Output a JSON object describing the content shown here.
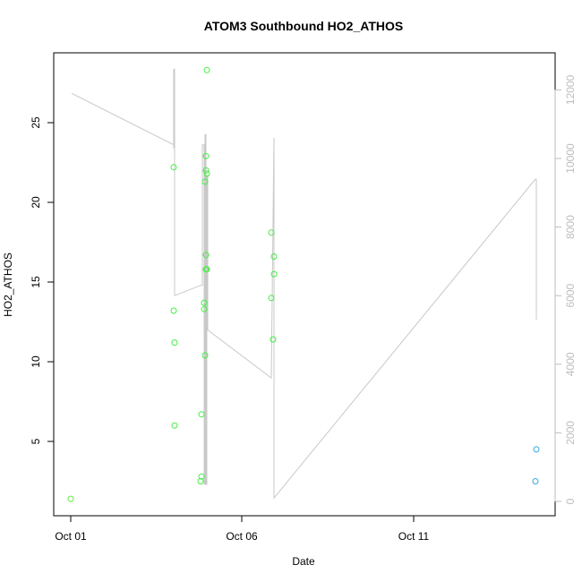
{
  "chart_data": {
    "type": "scatter",
    "title": "ATOM3 Southbound HO2_ATHOS",
    "xlabel": "Date",
    "ylabel": "HO2_ATHOS",
    "x_ticks": [
      "Oct 01",
      "Oct 06",
      "Oct 11"
    ],
    "y_ticks": [
      "5",
      "10",
      "15",
      "20",
      "25"
    ],
    "y2_ticks": [
      "0",
      "2000",
      "4000",
      "6000",
      "8000",
      "10000",
      "12000"
    ],
    "xlim_days": [
      0,
      14.0
    ],
    "ylim": [
      0.9,
      28.8
    ],
    "y2lim": [
      -300,
      12700
    ],
    "colors": {
      "series_green": "#66ee44",
      "series_green2": "#44ee44",
      "series_blue": "#33aadd",
      "altitude": "#c8c8c8",
      "right_axis": "#bdbdbd"
    },
    "series": [
      {
        "color": "#66ee44",
        "points": [
          [
            0.02,
            1.4
          ]
        ]
      },
      {
        "color": "#44ee44",
        "points": [
          [
            3.8,
            22.2
          ],
          [
            3.8,
            13.2
          ],
          [
            3.85,
            11.2
          ],
          [
            3.85,
            6.0
          ],
          [
            3.85,
            28.3
          ],
          [
            3.85,
            22.9
          ],
          [
            3.85,
            22.0
          ],
          [
            3.85,
            21.8
          ],
          [
            3.85,
            21.3
          ],
          [
            3.85,
            16.7
          ],
          [
            3.85,
            15.8
          ],
          [
            3.85,
            15.8
          ],
          [
            3.85,
            13.7
          ],
          [
            3.85,
            13.3
          ],
          [
            3.85,
            10.4
          ],
          [
            3.85,
            6.7
          ],
          [
            3.85,
            2.8
          ],
          [
            3.85,
            2.5
          ],
          [
            3.85,
            18.1
          ],
          [
            3.85,
            16.6
          ],
          [
            3.85,
            15.5
          ],
          [
            3.85,
            14.0
          ],
          [
            3.85,
            11.4
          ]
        ]
      },
      {
        "color": "#33aadd",
        "points": [
          [
            13.5,
            4.5
          ],
          [
            13.5,
            2.5
          ]
        ]
      }
    ],
    "altitude": [
      [
        0.05,
        11900
      ],
      [
        3.7,
        10400
      ],
      [
        3.78,
        10300
      ],
      [
        3.78,
        12600
      ],
      [
        3.8,
        12600
      ],
      [
        3.8,
        6000
      ],
      [
        3.82,
        6300
      ],
      [
        3.82,
        6300
      ],
      [
        3.85,
        6300
      ],
      [
        3.85,
        10400
      ],
      [
        3.9,
        10400
      ],
      [
        3.9,
        500
      ],
      [
        3.95,
        500
      ],
      [
        3.95,
        10700
      ],
      [
        3.98,
        10700
      ],
      [
        3.98,
        500
      ],
      [
        4.0,
        500
      ],
      [
        4.0,
        9500
      ],
      [
        4.02,
        9500
      ],
      [
        4.02,
        5000
      ],
      [
        6.0,
        3600
      ],
      [
        6.0,
        10600
      ],
      [
        6.05,
        10600
      ],
      [
        6.05,
        100
      ],
      [
        13.35,
        9400
      ],
      [
        13.38,
        9400
      ],
      [
        13.38,
        5300
      ]
    ]
  }
}
